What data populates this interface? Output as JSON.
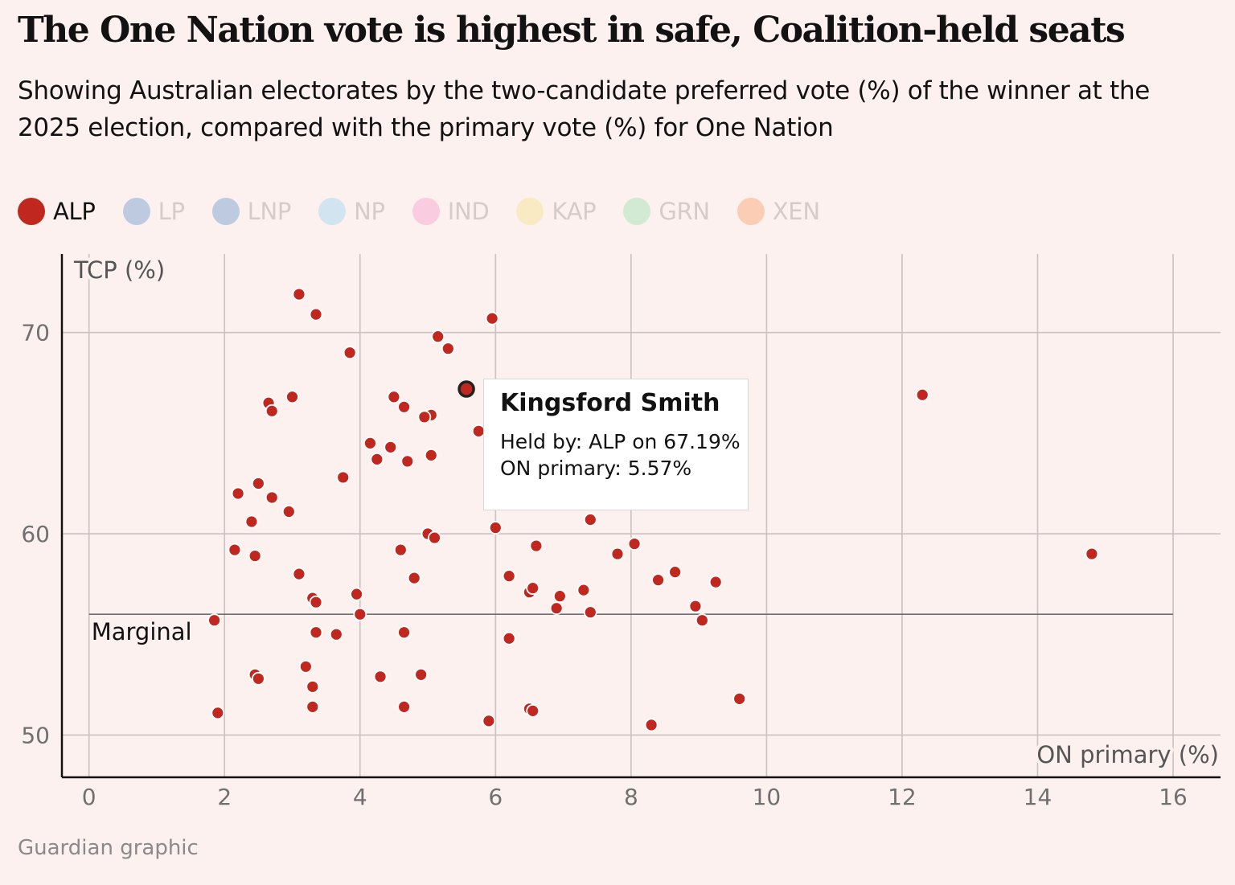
{
  "header": {
    "title": "The One Nation vote is highest in safe, Coalition-held seats",
    "subtitle": "Showing Australian electorates by the two-candidate preferred vote (%) of the winner at the 2025 election, compared with the primary vote (%) for One Nation"
  },
  "legend": [
    {
      "label": "ALP",
      "color": "#c0281f",
      "active": true
    },
    {
      "label": "LP",
      "color": "#7ea4d2",
      "active": false
    },
    {
      "label": "LNP",
      "color": "#7ea4d2",
      "active": false
    },
    {
      "label": "NP",
      "color": "#a8d8f0",
      "active": false
    },
    {
      "label": "IND",
      "color": "#f6a8d0",
      "active": false
    },
    {
      "label": "KAP",
      "color": "#f6e39a",
      "active": false
    },
    {
      "label": "GRN",
      "color": "#a8e2b8",
      "active": false
    },
    {
      "label": "XEN",
      "color": "#f9a97c",
      "active": false
    }
  ],
  "tooltip": {
    "title": "Kingsford Smith",
    "line1": "Held by: ALP on 67.19%",
    "line2": "ON primary: 5.57%"
  },
  "source": "Guardian graphic",
  "chart_data": {
    "type": "scatter",
    "title": "The One Nation vote is highest in safe, Coalition-held seats",
    "xlabel": "ON primary (%)",
    "ylabel": "TCP (%)",
    "xlim": [
      -0.4,
      16.7
    ],
    "ylim": [
      47.9,
      73.9
    ],
    "x_ticks": [
      0,
      2,
      4,
      6,
      8,
      10,
      12,
      14,
      16
    ],
    "y_ticks": [
      50,
      60,
      70
    ],
    "grid": true,
    "reference_line": {
      "y": 56,
      "x_range": [
        0,
        16
      ],
      "label": "Marginal"
    },
    "highlight": {
      "name": "Kingsford Smith",
      "party": "ALP",
      "x": 5.57,
      "y": 67.19
    },
    "series": [
      {
        "name": "ALP",
        "color": "#c0281f",
        "points": [
          [
            3.1,
            71.9
          ],
          [
            3.35,
            70.9
          ],
          [
            5.95,
            70.7
          ],
          [
            5.15,
            69.8
          ],
          [
            5.3,
            69.2
          ],
          [
            3.85,
            69.0
          ],
          [
            12.3,
            66.9
          ],
          [
            3.0,
            66.8
          ],
          [
            2.65,
            66.5
          ],
          [
            2.7,
            66.1
          ],
          [
            4.5,
            66.8
          ],
          [
            4.65,
            66.3
          ],
          [
            5.05,
            65.9
          ],
          [
            4.95,
            65.8
          ],
          [
            5.75,
            65.1
          ],
          [
            4.15,
            64.5
          ],
          [
            4.45,
            64.3
          ],
          [
            4.25,
            63.7
          ],
          [
            4.7,
            63.6
          ],
          [
            5.05,
            63.9
          ],
          [
            3.75,
            62.8
          ],
          [
            2.5,
            62.5
          ],
          [
            2.2,
            62.0
          ],
          [
            2.7,
            61.8
          ],
          [
            2.95,
            61.1
          ],
          [
            2.4,
            60.6
          ],
          [
            7.4,
            60.7
          ],
          [
            6.0,
            60.3
          ],
          [
            5.0,
            60.0
          ],
          [
            5.1,
            59.8
          ],
          [
            2.15,
            59.2
          ],
          [
            2.45,
            58.9
          ],
          [
            4.6,
            59.2
          ],
          [
            6.6,
            59.4
          ],
          [
            7.8,
            59.0
          ],
          [
            8.05,
            59.5
          ],
          [
            14.8,
            59.0
          ],
          [
            3.1,
            58.0
          ],
          [
            6.2,
            57.9
          ],
          [
            4.8,
            57.8
          ],
          [
            8.4,
            57.7
          ],
          [
            8.65,
            58.1
          ],
          [
            9.25,
            57.6
          ],
          [
            6.5,
            57.1
          ],
          [
            6.55,
            57.3
          ],
          [
            6.95,
            56.9
          ],
          [
            7.3,
            57.2
          ],
          [
            3.3,
            56.8
          ],
          [
            3.35,
            56.6
          ],
          [
            3.95,
            57.0
          ],
          [
            4.0,
            56.0
          ],
          [
            8.95,
            56.4
          ],
          [
            6.9,
            56.3
          ],
          [
            7.4,
            56.1
          ],
          [
            1.85,
            55.7
          ],
          [
            9.05,
            55.7
          ],
          [
            3.35,
            55.1
          ],
          [
            3.65,
            55.0
          ],
          [
            4.65,
            55.1
          ],
          [
            6.2,
            54.8
          ],
          [
            3.2,
            53.4
          ],
          [
            2.45,
            53.0
          ],
          [
            2.5,
            52.8
          ],
          [
            4.9,
            53.0
          ],
          [
            4.3,
            52.9
          ],
          [
            3.3,
            52.4
          ],
          [
            9.6,
            51.8
          ],
          [
            3.3,
            51.4
          ],
          [
            4.65,
            51.4
          ],
          [
            6.5,
            51.3
          ],
          [
            6.55,
            51.2
          ],
          [
            1.9,
            51.1
          ],
          [
            5.9,
            50.7
          ],
          [
            8.3,
            50.5
          ]
        ]
      }
    ]
  }
}
